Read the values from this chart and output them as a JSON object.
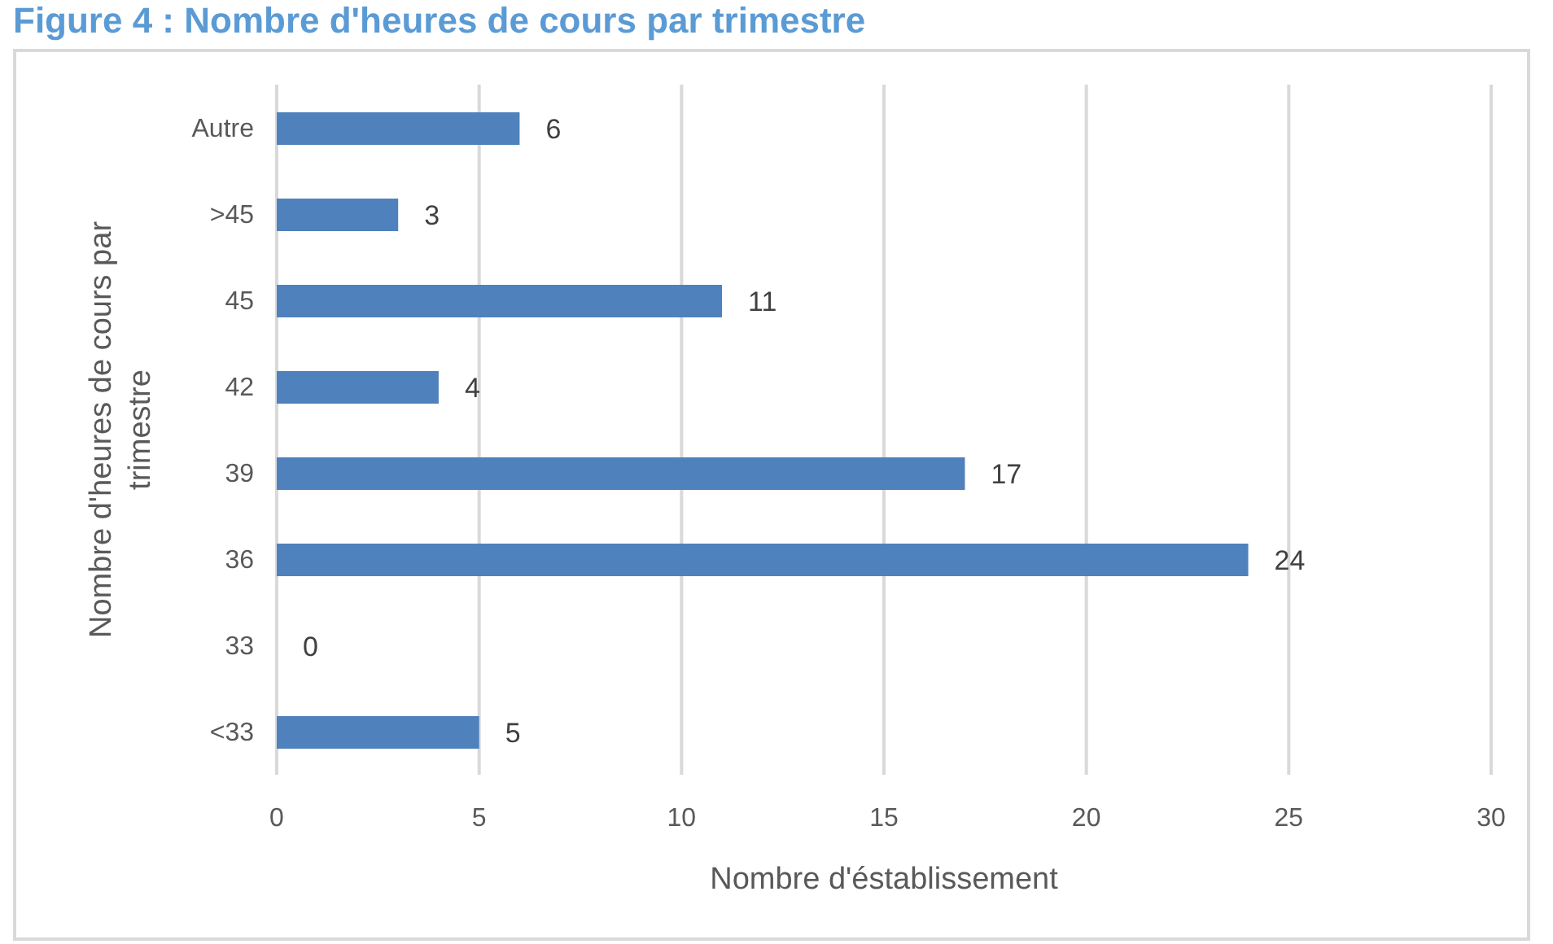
{
  "chart_data": {
    "type": "bar",
    "orientation": "horizontal",
    "title": "Figure 4 : Nombre d'heures de cours par trimestre",
    "xlabel": "Nombre d'éstablissement",
    "ylabel": "Nombre d'heures de cours par trimestre",
    "categories": [
      "Autre",
      ">45",
      "45",
      "42",
      "39",
      "36",
      "33",
      "<33"
    ],
    "values": [
      6,
      3,
      11,
      4,
      17,
      24,
      0,
      5
    ],
    "color": "#4f81bd",
    "xlim": [
      0,
      30
    ],
    "xticks": [
      0,
      5,
      10,
      15,
      20,
      25,
      30
    ],
    "grid": "x",
    "data_labels": true
  }
}
